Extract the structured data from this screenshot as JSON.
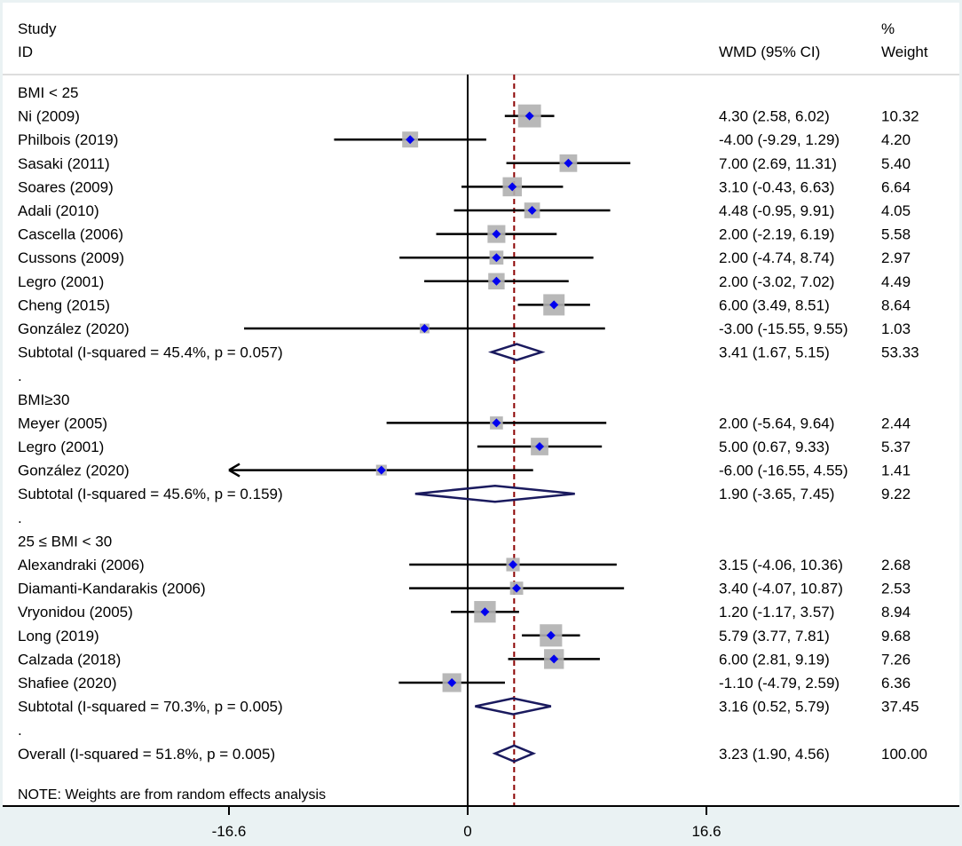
{
  "header": {
    "study_label_1": "Study",
    "study_label_2": "ID",
    "effect_label": "WMD (95% CI)",
    "weight_label_1": "%",
    "weight_label_2": "Weight"
  },
  "note": "NOTE: Weights are from random effects analysis",
  "colors": {
    "plot_background": "#ffffff",
    "outer_background": "#eaf2f3",
    "point_marker": "#0000ee",
    "weight_box": "#b0b0b0",
    "diamond": "#1a1a5e",
    "overall_line": "#8b0000"
  },
  "chart_data": {
    "type": "forest",
    "effect_measure": "WMD",
    "x_axis": {
      "ticks": [
        -16.6,
        0,
        16.6
      ],
      "tick_labels": [
        "-16.6",
        "0",
        "16.6"
      ],
      "null_line": 0,
      "overall_reference": 3.23
    },
    "groups": [
      {
        "label": "BMI  <  25",
        "studies": [
          {
            "study": "Ni (2009)",
            "est": 4.3,
            "lo": 2.58,
            "hi": 6.02,
            "ci_text": "4.30 (2.58, 6.02)",
            "weight": "10.32"
          },
          {
            "study": "Philbois (2019)",
            "est": -4.0,
            "lo": -9.29,
            "hi": 1.29,
            "ci_text": "-4.00 (-9.29, 1.29)",
            "weight": "4.20"
          },
          {
            "study": "Sasaki (2011)",
            "est": 7.0,
            "lo": 2.69,
            "hi": 11.31,
            "ci_text": "7.00 (2.69, 11.31)",
            "weight": "5.40"
          },
          {
            "study": "Soares (2009)",
            "est": 3.1,
            "lo": -0.43,
            "hi": 6.63,
            "ci_text": "3.10 (-0.43, 6.63)",
            "weight": "6.64"
          },
          {
            "study": "Adali (2010)",
            "est": 4.48,
            "lo": -0.95,
            "hi": 9.91,
            "ci_text": "4.48 (-0.95, 9.91)",
            "weight": "4.05"
          },
          {
            "study": "Cascella (2006)",
            "est": 2.0,
            "lo": -2.19,
            "hi": 6.19,
            "ci_text": "2.00 (-2.19, 6.19)",
            "weight": "5.58"
          },
          {
            "study": "Cussons (2009)",
            "est": 2.0,
            "lo": -4.74,
            "hi": 8.74,
            "ci_text": "2.00 (-4.74, 8.74)",
            "weight": "2.97"
          },
          {
            "study": "Legro (2001)",
            "est": 2.0,
            "lo": -3.02,
            "hi": 7.02,
            "ci_text": "2.00 (-3.02, 7.02)",
            "weight": "4.49"
          },
          {
            "study": "Cheng (2015)",
            "est": 6.0,
            "lo": 3.49,
            "hi": 8.51,
            "ci_text": "6.00 (3.49, 8.51)",
            "weight": "8.64"
          },
          {
            "study": "González (2020)",
            "est": -3.0,
            "lo": -15.55,
            "hi": 9.55,
            "ci_text": "-3.00 (-15.55, 9.55)",
            "weight": "1.03"
          }
        ],
        "subtotal": {
          "label": "Subtotal  (I-squared = 45.4%, p = 0.057)",
          "est": 3.41,
          "lo": 1.67,
          "hi": 5.15,
          "ci_text": "3.41 (1.67, 5.15)",
          "weight": "53.33"
        }
      },
      {
        "label": "BMI≥30",
        "studies": [
          {
            "study": "Meyer (2005)",
            "est": 2.0,
            "lo": -5.64,
            "hi": 9.64,
            "ci_text": "2.00 (-5.64, 9.64)",
            "weight": "2.44"
          },
          {
            "study": "Legro (2001)",
            "est": 5.0,
            "lo": 0.67,
            "hi": 9.33,
            "ci_text": "5.00 (0.67, 9.33)",
            "weight": "5.37"
          },
          {
            "study": "González (2020)",
            "est": -6.0,
            "lo": -16.55,
            "hi": 4.55,
            "ci_text": "-6.00 (-16.55, 4.55)",
            "weight": "1.41",
            "lo_arrow": true
          }
        ],
        "subtotal": {
          "label": "Subtotal  (I-squared = 45.6%, p = 0.159)",
          "est": 1.9,
          "lo": -3.65,
          "hi": 7.45,
          "ci_text": "1.90 (-3.65, 7.45)",
          "weight": "9.22"
        }
      },
      {
        "label": "25 ≤ BMI  < 30",
        "studies": [
          {
            "study": "Alexandraki (2006)",
            "est": 3.15,
            "lo": -4.06,
            "hi": 10.36,
            "ci_text": "3.15 (-4.06, 10.36)",
            "weight": "2.68"
          },
          {
            "study": "Diamanti-Kandarakis (2006)",
            "est": 3.4,
            "lo": -4.07,
            "hi": 10.87,
            "ci_text": "3.40 (-4.07, 10.87)",
            "weight": "2.53"
          },
          {
            "study": "Vryonidou (2005)",
            "est": 1.2,
            "lo": -1.17,
            "hi": 3.57,
            "ci_text": "1.20 (-1.17, 3.57)",
            "weight": "8.94"
          },
          {
            "study": "Long (2019)",
            "est": 5.79,
            "lo": 3.77,
            "hi": 7.81,
            "ci_text": "5.79 (3.77, 7.81)",
            "weight": "9.68"
          },
          {
            "study": "Calzada (2018)",
            "est": 6.0,
            "lo": 2.81,
            "hi": 9.19,
            "ci_text": "6.00 (2.81, 9.19)",
            "weight": "7.26"
          },
          {
            "study": "Shafiee (2020)",
            "est": -1.1,
            "lo": -4.79,
            "hi": 2.59,
            "ci_text": "-1.10 (-4.79, 2.59)",
            "weight": "6.36"
          }
        ],
        "subtotal": {
          "label": "Subtotal  (I-squared = 70.3%, p = 0.005)",
          "est": 3.16,
          "lo": 0.52,
          "hi": 5.79,
          "ci_text": "3.16 (0.52, 5.79)",
          "weight": "37.45"
        }
      }
    ],
    "overall": {
      "label": "Overall  (I-squared = 51.8%, p = 0.005)",
      "est": 3.23,
      "lo": 1.9,
      "hi": 4.56,
      "ci_text": "3.23 (1.90, 4.56)",
      "weight": "100.00"
    }
  }
}
